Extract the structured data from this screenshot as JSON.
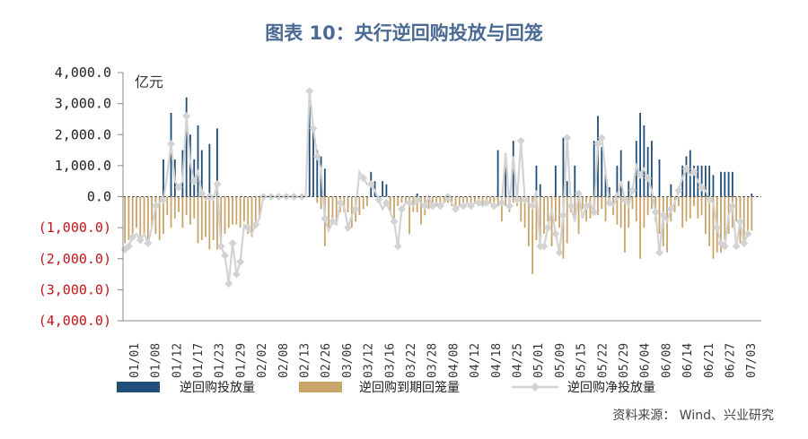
{
  "chart_data": {
    "type": "bar",
    "title": "图表 10：央行逆回购投放与回笼",
    "unit_label": "亿元",
    "source": "资料来源： Wind、兴业研究",
    "ylim": [
      -4000,
      4000
    ],
    "yticks": [
      4000,
      3000,
      2000,
      1000,
      0,
      -1000,
      -2000,
      -3000,
      -4000
    ],
    "ytick_labels": [
      "4,000.0",
      "3,000.0",
      "2,000.0",
      "1,000.0",
      "0.0",
      "(1,000.0)",
      "(2,000.0)",
      "(3,000.0)",
      "(4,000.0)"
    ],
    "negative_tick_color": "#c0151b",
    "positive_tick_color": "#222222",
    "x_tick_labels": [
      "01/01",
      "01/08",
      "01/12",
      "01/17",
      "01/23",
      "01/29",
      "02/02",
      "02/08",
      "02/13",
      "02/26",
      "03/06",
      "03/12",
      "03/16",
      "03/22",
      "03/28",
      "04/08",
      "04/12",
      "04/18",
      "04/25",
      "05/01",
      "05/09",
      "05/15",
      "05/22",
      "05/29",
      "06/04",
      "06/08",
      "06/14",
      "06/21",
      "06/27",
      "07/03"
    ],
    "legend_position": "bottom",
    "grid": false,
    "series": [
      {
        "name": "逆回购投放量",
        "style": "bar",
        "color": "#1f4e79",
        "values": [
          0,
          0,
          0,
          0,
          0,
          0,
          0,
          0,
          0,
          0,
          1200,
          0,
          2700,
          1200,
          0,
          1500,
          3200,
          2000,
          1200,
          2300,
          1500,
          0,
          1700,
          0,
          2200,
          0,
          0,
          0,
          0,
          0,
          0,
          0,
          0,
          0,
          0,
          0,
          0,
          0,
          0,
          0,
          0,
          0,
          0,
          0,
          0,
          0,
          0,
          0,
          3200,
          2200,
          1500,
          1300,
          900,
          0,
          0,
          0,
          0,
          0,
          0,
          0,
          0,
          0,
          0,
          0,
          800,
          500,
          0,
          500,
          400,
          0,
          0,
          0,
          0,
          0,
          0,
          0,
          100,
          0,
          0,
          0,
          0,
          0,
          0,
          0,
          0,
          0,
          0,
          0,
          0,
          0,
          0,
          0,
          0,
          0,
          0,
          0,
          0,
          1500,
          0,
          1400,
          0,
          1800,
          0,
          0,
          0,
          0,
          0,
          1000,
          400,
          0,
          0,
          0,
          1000,
          0,
          1900,
          500,
          0,
          1000,
          0,
          0,
          0,
          0,
          1800,
          2600,
          1600,
          800,
          300,
          0,
          1000,
          1500,
          0,
          500,
          0,
          1800,
          2700,
          2300,
          1600,
          1800,
          0,
          1200,
          0,
          0,
          400,
          0,
          0,
          1000,
          1300,
          1500,
          1000,
          1000,
          1000,
          1000,
          1000,
          700,
          0,
          800,
          800,
          800,
          800,
          0,
          0,
          0,
          0,
          100,
          0,
          0
        ],
        "y_values_note": ""
      },
      {
        "name": "逆回购到期回笼量",
        "style": "bar",
        "color": "#c9a46a",
        "values": [
          -1500,
          -1400,
          -1200,
          -1000,
          -1400,
          -1200,
          -1500,
          -1000,
          -1200,
          -1400,
          -1200,
          -600,
          -1000,
          -700,
          -500,
          -1000,
          -600,
          -900,
          -700,
          -1500,
          -1400,
          -1300,
          -1700,
          -1400,
          -1700,
          -1600,
          -1200,
          -1000,
          -900,
          -900,
          -1000,
          -800,
          -1200,
          -1300,
          -800,
          -700,
          0,
          0,
          0,
          0,
          0,
          0,
          0,
          0,
          0,
          0,
          0,
          0,
          0,
          0,
          -200,
          -400,
          -1600,
          -1100,
          -800,
          -900,
          -500,
          -500,
          -500,
          -1000,
          -800,
          -600,
          -400,
          -300,
          0,
          0,
          0,
          0,
          0,
          -500,
          -800,
          -300,
          -200,
          -200,
          -1200,
          -500,
          -500,
          -900,
          -600,
          -400,
          -300,
          -300,
          -300,
          -200,
          -200,
          -300,
          -300,
          -300,
          -300,
          -200,
          -300,
          -200,
          -200,
          -300,
          -200,
          -200,
          -400,
          -300,
          -800,
          -300,
          -500,
          -200,
          -300,
          -800,
          -1000,
          -1600,
          -2500,
          -1400,
          -1600,
          -1200,
          -800,
          -1600,
          -800,
          -1000,
          -2000,
          -1500,
          -500,
          -800,
          -1200,
          -400,
          -800,
          -700,
          -400,
          -600,
          -400,
          -800,
          -300,
          -600,
          -900,
          -1000,
          -1800,
          -1000,
          -400,
          -800,
          -2000,
          -1000,
          -600,
          -400,
          -800,
          -1200,
          -1600,
          -1800,
          -800,
          -500,
          -300,
          -1000,
          -800,
          -700,
          -300,
          -700,
          -600,
          -1200,
          -1600,
          -2000,
          -1800,
          -1800,
          -1400,
          -1200,
          -1000,
          -800,
          -1500,
          -1600,
          -1200,
          -1100
        ]
      },
      {
        "name": "逆回购净投放量",
        "style": "line",
        "color": "#d3d3d3",
        "values": [
          -1700,
          -1600,
          -1300,
          -1200,
          -1400,
          -1200,
          -1500,
          -1000,
          -300,
          -200,
          -100,
          700,
          1700,
          500,
          300,
          500,
          2600,
          1100,
          500,
          800,
          100,
          -100,
          0,
          -100,
          400,
          -1600,
          -1900,
          -2800,
          -1500,
          -2500,
          -2100,
          -900,
          -1000,
          -1200,
          -900,
          -700,
          0,
          0,
          0,
          0,
          0,
          0,
          0,
          0,
          0,
          0,
          0,
          0,
          3400,
          2200,
          1300,
          900,
          -700,
          -1100,
          -800,
          -900,
          -200,
          -300,
          -1000,
          -600,
          -400,
          800,
          600,
          400,
          400,
          200,
          -100,
          -400,
          -200,
          -500,
          -800,
          -1600,
          -400,
          -200,
          -200,
          -300,
          -100,
          -200,
          -300,
          0,
          -300,
          -200,
          -300,
          -200,
          0,
          -200,
          -400,
          -300,
          -300,
          -200,
          -300,
          -200,
          -200,
          -300,
          -200,
          -200,
          -300,
          -300,
          -200,
          1400,
          -300,
          1300,
          -100,
          1800,
          -100,
          -200,
          -300,
          200,
          -1600,
          -1600,
          -1000,
          -400,
          -1200,
          -1800,
          -600,
          1900,
          -300,
          -800,
          100,
          -700,
          -300,
          -200,
          -500,
          1700,
          1900,
          800,
          -200,
          -300,
          0,
          500,
          -100,
          -300,
          200,
          1000,
          700,
          900,
          600,
          200,
          -500,
          -1800,
          -600,
          -800,
          -400,
          -200,
          200,
          600,
          900,
          700,
          800,
          500,
          300,
          200,
          -100,
          -200,
          -1000,
          -1500,
          -1600,
          -600,
          -300,
          -1600,
          -800,
          -1500,
          -1200
        ]
      }
    ]
  }
}
